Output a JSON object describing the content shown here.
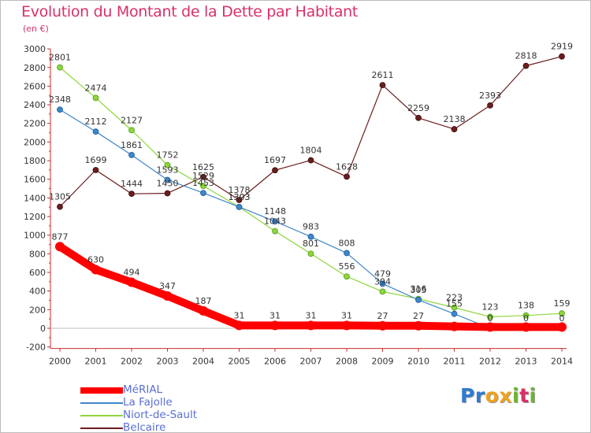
{
  "title": "Evolution du Montant de la Dette par Habitant",
  "subtitle": "(en €)",
  "logo": {
    "letters": [
      {
        "ch": "P",
        "color": "#2f7ad1"
      },
      {
        "ch": "r",
        "color": "#2f7ad1"
      },
      {
        "ch": "o",
        "color": "#f0a11e"
      },
      {
        "ch": "x",
        "color": "#f0a11e"
      },
      {
        "ch": "i",
        "color": "#6cb52d"
      },
      {
        "ch": "t",
        "color": "#d9306a"
      },
      {
        "ch": "i",
        "color": "#6cb52d"
      }
    ]
  },
  "chart_data": {
    "type": "line",
    "title": "Evolution du Montant de la Dette par Habitant",
    "subtitle": "(en €)",
    "x": [
      "2000",
      "2001",
      "2002",
      "2003",
      "2004",
      "2005",
      "2006",
      "2007",
      "2008",
      "2009",
      "2010",
      "2011",
      "2012",
      "2013",
      "2014"
    ],
    "ylim": [
      -200,
      3000
    ],
    "yticks": [
      -200,
      0,
      200,
      400,
      600,
      800,
      1000,
      1200,
      1400,
      1600,
      1800,
      2000,
      2200,
      2400,
      2600,
      2800,
      3000
    ],
    "grid": false,
    "legend": "bottom-left",
    "series": [
      {
        "name": "MéRIAL",
        "color": "#ff0000",
        "values": [
          877,
          630,
          494,
          347,
          187,
          31,
          31,
          31,
          31,
          27,
          27,
          20,
          14,
          14,
          14
        ],
        "labels": [
          "877",
          "630",
          "494",
          "347",
          "187",
          "31",
          "31",
          "31",
          "31",
          "27",
          "27",
          "",
          "",
          "",
          ""
        ]
      },
      {
        "name": "La Fajolle",
        "color": "#3e86c9",
        "values": [
          2348,
          2112,
          1861,
          1593,
          1453,
          1303,
          1148,
          983,
          808,
          479,
          305,
          155,
          0,
          0,
          0
        ],
        "labels": [
          "2348",
          "2112",
          "1861",
          "1593",
          "1453",
          "1303",
          "1148",
          "983",
          "808",
          "479",
          "305",
          "155",
          "0",
          "0",
          "0"
        ]
      },
      {
        "name": "Niort-de-Sault",
        "color": "#8ed63a",
        "values": [
          2801,
          2474,
          2127,
          1752,
          1529,
          1303,
          1043,
          801,
          556,
          394,
          316,
          223,
          123,
          138,
          159
        ],
        "labels": [
          "2801",
          "2474",
          "2127",
          "1752",
          "1529",
          "1303",
          "1043",
          "801",
          "556",
          "394",
          "316",
          "223",
          "123",
          "138",
          "159"
        ]
      },
      {
        "name": "Belcaire",
        "color": "#6b1d1d",
        "values": [
          1305,
          1699,
          1444,
          1450,
          1625,
          1378,
          1697,
          1804,
          1628,
          2611,
          2259,
          2138,
          2393,
          2818,
          2919
        ],
        "labels": [
          "1305",
          "1699",
          "1444",
          "1450",
          "1625",
          "1378",
          "1697",
          "1804",
          "1628",
          "2611",
          "2259",
          "2138",
          "2393",
          "2818",
          "2919"
        ]
      }
    ]
  }
}
